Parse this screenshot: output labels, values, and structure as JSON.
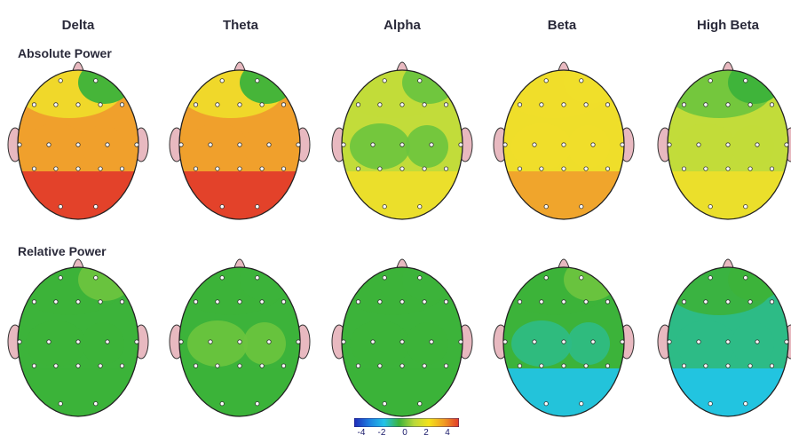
{
  "bands": [
    "Delta",
    "Theta",
    "Alpha",
    "Beta",
    "High Beta"
  ],
  "rows": [
    "Absolute Power",
    "Relative Power"
  ],
  "colorbar": {
    "ticks": [
      "-4",
      "-2",
      "0",
      "2",
      "4"
    ],
    "colors": [
      "#1f2bb8",
      "#1e7fe0",
      "#22c3e8",
      "#3cb33a",
      "#b9d83a",
      "#f4e21a",
      "#f09b23",
      "#e23a2a"
    ]
  },
  "palette": {
    "red": "#e23a2a",
    "orange": "#f0a02c",
    "yellow": "#efde2a",
    "yellow_green": "#c2dc3a",
    "green": "#3cb33a",
    "light_green": "#6cc43e",
    "cyan_green": "#2dbb86",
    "cyan": "#22c4e8",
    "ear_pink": "#e8b9c0"
  },
  "maps": [
    {
      "row": "Absolute Power",
      "band": "Delta",
      "base": "orange",
      "front": "yellow",
      "front_right": "green",
      "mid": "orange",
      "back": "red"
    },
    {
      "row": "Absolute Power",
      "band": "Theta",
      "base": "orange",
      "front": "yellow",
      "front_right": "green",
      "mid": "orange",
      "back": "red"
    },
    {
      "row": "Absolute Power",
      "band": "Alpha",
      "base": "yellow_green",
      "front": "yellow_green",
      "front_right": "light_green",
      "mid": "light_green",
      "back": "yellow"
    },
    {
      "row": "Absolute Power",
      "band": "Beta",
      "base": "yellow",
      "front": "yellow",
      "front_right": "yellow",
      "mid": "yellow",
      "back": "orange"
    },
    {
      "row": "Absolute Power",
      "band": "High Beta",
      "base": "yellow_green",
      "front": "light_green",
      "front_right": "green",
      "mid": "yellow_green",
      "back": "yellow"
    },
    {
      "row": "Relative Power",
      "band": "Delta",
      "base": "green",
      "front": "green",
      "front_right": "light_green",
      "mid": "green",
      "back": "green"
    },
    {
      "row": "Relative Power",
      "band": "Theta",
      "base": "green",
      "front": "green",
      "front_right": "green",
      "mid": "light_green",
      "back": "green"
    },
    {
      "row": "Relative Power",
      "band": "Alpha",
      "base": "green",
      "front": "green",
      "front_right": "green",
      "mid": "green",
      "back": "green"
    },
    {
      "row": "Relative Power",
      "band": "Beta",
      "base": "green",
      "front": "green",
      "front_right": "light_green",
      "mid": "cyan_green",
      "back": "cyan"
    },
    {
      "row": "Relative Power",
      "band": "High Beta",
      "base": "cyan_green",
      "front": "green",
      "front_right": "green",
      "mid": "cyan_green",
      "back": "cyan"
    }
  ]
}
